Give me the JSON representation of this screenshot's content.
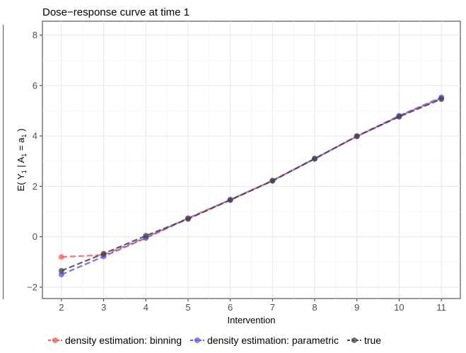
{
  "chart_data": {
    "type": "line",
    "title": "Dose−response curve at time 1",
    "xlabel": "Intervention",
    "ylabel": {
      "main": "E( Y",
      "sub1": "1",
      "mid": " | A",
      "sub2": "1",
      "eq": " = a",
      "sub3": "1",
      "close": " )"
    },
    "x": [
      2,
      3,
      4,
      5,
      6,
      7,
      8,
      9,
      10,
      11
    ],
    "x_ticks": [
      "2",
      "3",
      "4",
      "5",
      "6",
      "7",
      "8",
      "9",
      "10",
      "11"
    ],
    "y_ticks": [
      "−2",
      "0",
      "2",
      "4",
      "6",
      "8"
    ],
    "y_tick_values": [
      -2,
      0,
      2,
      4,
      6,
      8
    ],
    "xlim": [
      1.55,
      11.45
    ],
    "ylim": [
      -2.45,
      8.55
    ],
    "grid": true,
    "legend_position": "bottom",
    "series": [
      {
        "name": "density estimation: binning",
        "color": "#ff5a5a",
        "values": [
          -0.8,
          -0.72,
          -0.03,
          0.74,
          1.47,
          2.23,
          3.1,
          3.98,
          4.78,
          5.5
        ]
      },
      {
        "name": "density estimation: parametric",
        "color": "#5a5aff",
        "values": [
          -1.5,
          -0.78,
          -0.05,
          0.72,
          1.46,
          2.22,
          3.09,
          3.99,
          4.8,
          5.53
        ]
      },
      {
        "name": "true",
        "color": "#444444",
        "values": [
          -1.35,
          -0.67,
          0.04,
          0.71,
          1.46,
          2.22,
          3.1,
          3.99,
          4.76,
          5.46
        ]
      }
    ]
  }
}
